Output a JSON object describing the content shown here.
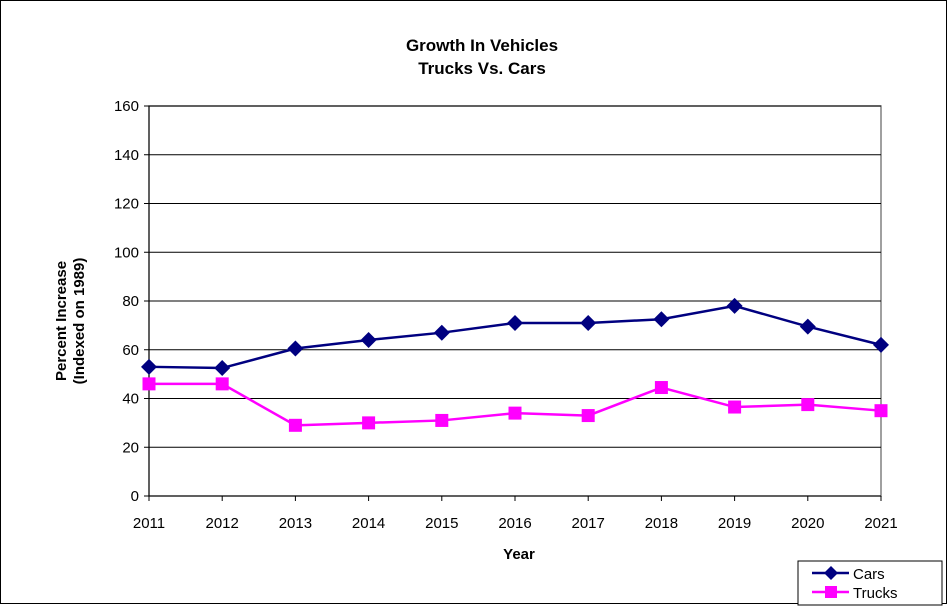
{
  "chart_data": {
    "type": "line",
    "title": [
      "Growth In Vehicles",
      "Trucks Vs. Cars"
    ],
    "xlabel": "Year",
    "ylabel": [
      "Percent Increase",
      "(Indexed on 1989)"
    ],
    "categories": [
      "2011",
      "2012",
      "2013",
      "2014",
      "2015",
      "2016",
      "2017",
      "2018",
      "2019",
      "2020",
      "2021"
    ],
    "ylim": [
      0,
      160
    ],
    "yticks": [
      0,
      20,
      40,
      60,
      80,
      100,
      120,
      140,
      160
    ],
    "grid": "horizontal",
    "legend_position": "bottom-right",
    "series": [
      {
        "name": "Cars",
        "color": "#000080",
        "marker": "diamond",
        "values": [
          53,
          52.5,
          60.5,
          64,
          67,
          71,
          71,
          72.5,
          78,
          69.5,
          62
        ]
      },
      {
        "name": "Trucks",
        "color": "#FF00FF",
        "marker": "square",
        "values": [
          46,
          46,
          29,
          30,
          31,
          34,
          33,
          44.5,
          36.5,
          37.5,
          35
        ]
      }
    ]
  }
}
